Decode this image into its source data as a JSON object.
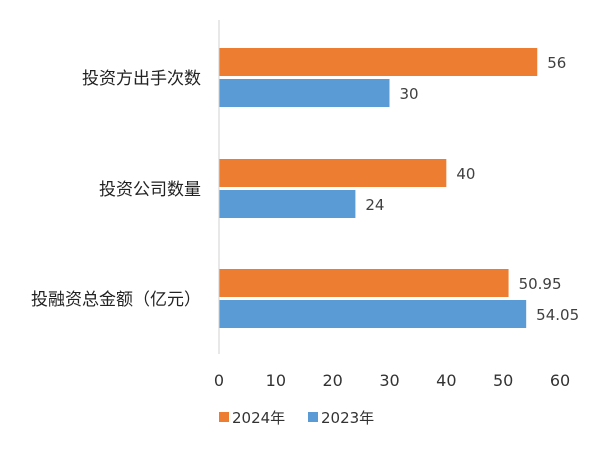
{
  "chart_data": {
    "type": "bar",
    "orientation": "horizontal",
    "categories": [
      "投资方出手次数",
      "投资公司数量",
      "投融资总金额（亿元）"
    ],
    "series": [
      {
        "name": "2024年",
        "values": [
          56,
          40,
          50.95
        ],
        "labels": [
          "56",
          "40",
          "50.95"
        ],
        "color": "#ED7D31"
      },
      {
        "name": "2023年",
        "values": [
          30,
          24,
          54.05
        ],
        "labels": [
          "30",
          "24",
          "54.05"
        ],
        "color": "#5B9BD5"
      }
    ],
    "xlim": [
      0,
      60
    ],
    "xticks": [
      0,
      10,
      20,
      30,
      40,
      50,
      60
    ],
    "grid": false,
    "legend_position": "bottom-left"
  }
}
